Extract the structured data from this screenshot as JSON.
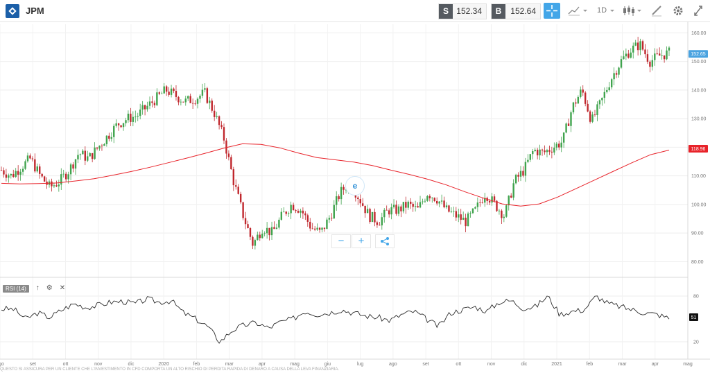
{
  "toolbar": {
    "symbol": "JPM",
    "sell_label": "S",
    "sell_price": "152.34",
    "buy_label": "B",
    "buy_price": "152.64",
    "interval": "1D",
    "icons": [
      "crosshair-icon",
      "line-chart-icon",
      "candles-icon",
      "draw-icon",
      "settings-icon",
      "expand-icon"
    ]
  },
  "price_axis": {
    "ticks": [
      "160.00",
      "150.00",
      "140.00",
      "130.00",
      "120.00",
      "110.00",
      "100.00",
      "90.00",
      "80.00"
    ],
    "last_price": "152.65",
    "ma_value": "118.96",
    "last_price_color": "#4aa3e0",
    "ma_color": "#e8232a"
  },
  "rsi": {
    "label": "RSI (14)",
    "ticks": [
      "80",
      "20"
    ],
    "value": "51"
  },
  "time_axis": [
    "ago",
    "set",
    "ott",
    "nov",
    "dic",
    "2020",
    "feb",
    "mar",
    "apr",
    "mag",
    "giu",
    "lug",
    "ago",
    "set",
    "ott",
    "nov",
    "dic",
    "2021",
    "feb",
    "mar",
    "apr",
    "mag"
  ],
  "footer": "QUESTO SI ASSICURA PER UN CLIENTE CHE L'INVESTIMENTO IN CFD COMPORTA UN ALTO RISCHIO DI PERDITA RAPIDA DI DENARO A CAUSA DELLA LEVA FINANZIARIA.",
  "chart_data": {
    "type": "candlestick",
    "instrument": "JPM",
    "interval": "1D",
    "ylim": [
      75,
      163
    ],
    "months": [
      "ago",
      "set",
      "ott",
      "nov",
      "dic",
      "2020",
      "feb",
      "mar",
      "apr",
      "mag",
      "giu",
      "lug",
      "ago",
      "set",
      "ott",
      "nov",
      "dic",
      "2021",
      "feb",
      "mar",
      "apr",
      "mag"
    ],
    "price_close": [
      112,
      110,
      113,
      116,
      110,
      106,
      108,
      112,
      118,
      116,
      120,
      124,
      128,
      130,
      131,
      134,
      137,
      140,
      138,
      136,
      137,
      139,
      132,
      123,
      108,
      96,
      86,
      92,
      90,
      96,
      100,
      98,
      92,
      90,
      96,
      104,
      108,
      102,
      96,
      94,
      98,
      98,
      100,
      98,
      104,
      102,
      98,
      96,
      94,
      98,
      104,
      100,
      96,
      108,
      112,
      119,
      118,
      120,
      122,
      134,
      140,
      129,
      136,
      144,
      150,
      154,
      156,
      150,
      152,
      153
    ],
    "ma200": [
      107.4,
      107.2,
      107.3,
      107.5,
      108.2,
      109.0,
      110.2,
      111.5,
      113.0,
      114.6,
      116.2,
      117.9,
      119.7,
      121.2,
      121.0,
      119.8,
      118.0,
      116.4,
      115.6,
      114.8,
      113.6,
      112.0,
      110.5,
      108.8,
      106.8,
      104.4,
      102.2,
      100.2,
      99.4,
      100.2,
      102.6,
      105.6,
      108.6,
      111.6,
      114.6,
      117.4,
      119.0
    ],
    "rsi14": [
      63,
      63,
      50,
      58,
      52,
      62,
      70,
      65,
      68,
      72,
      73,
      70,
      76,
      72,
      74,
      58,
      50,
      40,
      20,
      35,
      42,
      45,
      38,
      46,
      50,
      60,
      56,
      58,
      62,
      58,
      54,
      52,
      48,
      56,
      60,
      50,
      40,
      58,
      62,
      66,
      60,
      72,
      74,
      64,
      66,
      80,
      56,
      60,
      62,
      80,
      70,
      66,
      62,
      58,
      56,
      51
    ],
    "rsi_ylim": [
      0,
      100
    ],
    "rsi_levels": [
      80,
      20
    ]
  }
}
